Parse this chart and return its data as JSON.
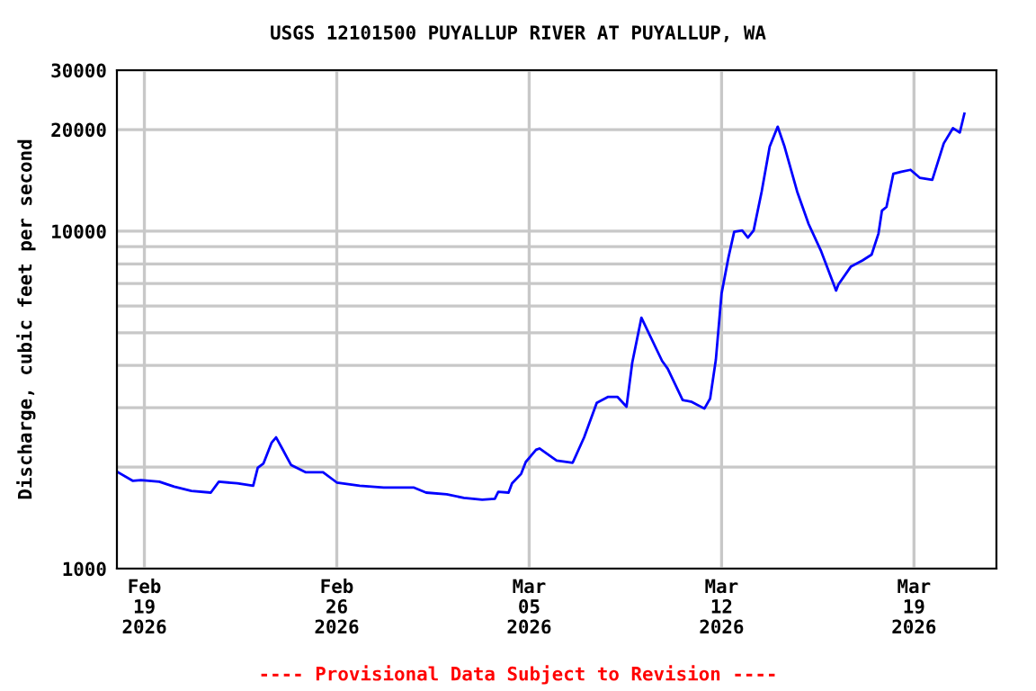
{
  "chart_data": {
    "type": "line",
    "title": "USGS 12101500 PUYALLUP RIVER AT PUYALLUP, WA",
    "ylabel": "Discharge, cubic feet per second",
    "annotations": [
      "---- Provisional Data Subject to Revision ----"
    ],
    "log": "y",
    "grid": true,
    "marker": "none",
    "line_style": "solid",
    "xlim": [
      "2026-02-18",
      "2026-03-22"
    ],
    "xticks": [
      {
        "value": "2026-02-19",
        "label": "Feb\n19\n2026"
      },
      {
        "value": "2026-02-26",
        "label": "Feb\n26\n2026"
      },
      {
        "value": "2026-03-05",
        "label": "Mar\n05\n2026"
      },
      {
        "value": "2026-03-12",
        "label": "Mar\n12\n2026"
      },
      {
        "value": "2026-03-19",
        "label": "Mar\n19\n2026"
      }
    ],
    "ylim": [
      1000,
      30000
    ],
    "yticks": [
      1000,
      {
        "value": 2000,
        "label": null
      },
      {
        "value": 3000,
        "label": null
      },
      {
        "value": 4000,
        "label": null
      },
      {
        "value": 5000,
        "label": null
      },
      {
        "value": 6000,
        "label": null
      },
      {
        "value": 7000,
        "label": null
      },
      {
        "value": 8000,
        "label": null
      },
      {
        "value": 9000,
        "label": null
      },
      10000,
      20000,
      30000
    ],
    "series": [
      {
        "color": "#0000ff",
        "x": [
          "2026-02-18T01:00",
          "2026-02-18T14:00",
          "2026-02-18T21:00",
          "2026-02-19T13:00",
          "2026-02-20T02:00",
          "2026-02-20T17:00",
          "2026-02-21T10:00",
          "2026-02-21T17:00",
          "2026-02-22T09:00",
          "2026-02-22T23:00",
          "2026-02-23T03:00",
          "2026-02-23T08:00",
          "2026-02-23T15:00",
          "2026-02-23T19:00",
          "2026-02-24T00:00",
          "2026-02-24T08:00",
          "2026-02-24T21:00",
          "2026-02-25T12:00",
          "2026-02-26T00:00",
          "2026-02-26T20:00",
          "2026-02-27T17:00",
          "2026-02-28T19:00",
          "2026-03-01T06:00",
          "2026-03-02T00:00",
          "2026-03-02T15:00",
          "2026-03-03T07:00",
          "2026-03-03T18:00",
          "2026-03-03T21:00",
          "2026-03-04T06:00",
          "2026-03-04T09:00",
          "2026-03-04T17:00",
          "2026-03-04T21:00",
          "2026-03-05T06:00",
          "2026-03-05T09:00",
          "2026-03-06T00:00",
          "2026-03-06T14:00",
          "2026-03-07T00:00",
          "2026-03-07T11:00",
          "2026-03-07T21:00",
          "2026-03-08T05:00",
          "2026-03-08T13:00",
          "2026-03-08T18:00",
          "2026-03-09T02:00",
          "2026-03-09T20:00",
          "2026-03-10T01:00",
          "2026-03-10T14:00",
          "2026-03-10T22:00",
          "2026-03-11T09:00",
          "2026-03-11T14:00",
          "2026-03-11T19:00",
          "2026-03-12T00:00",
          "2026-03-12T06:00",
          "2026-03-12T11:00",
          "2026-03-12T18:00",
          "2026-03-12T23:00",
          "2026-03-13T04:00",
          "2026-03-13T11:00",
          "2026-03-13T18:00",
          "2026-03-14T01:00",
          "2026-03-14T07:00",
          "2026-03-14T18:00",
          "2026-03-15T04:00",
          "2026-03-15T15:00",
          "2026-03-16T04:00",
          "2026-03-16T06:00",
          "2026-03-16T17:00",
          "2026-03-17T03:00",
          "2026-03-17T11:00",
          "2026-03-17T17:00",
          "2026-03-17T20:00",
          "2026-03-18T00:00",
          "2026-03-18T06:00",
          "2026-03-18T13:00",
          "2026-03-18T21:00",
          "2026-03-19T05:00",
          "2026-03-19T16:00",
          "2026-03-20T02:00",
          "2026-03-20T10:00",
          "2026-03-20T16:00",
          "2026-03-20T20:00"
        ],
        "values": [
          1930,
          1820,
          1830,
          1810,
          1750,
          1700,
          1680,
          1810,
          1790,
          1760,
          1990,
          2050,
          2360,
          2450,
          2280,
          2030,
          1930,
          1930,
          1800,
          1760,
          1740,
          1740,
          1680,
          1660,
          1620,
          1600,
          1610,
          1690,
          1680,
          1790,
          1910,
          2070,
          2250,
          2270,
          2090,
          2060,
          2450,
          3100,
          3230,
          3230,
          3020,
          4080,
          5540,
          4130,
          3910,
          3160,
          3120,
          2980,
          3190,
          4160,
          6540,
          8360,
          9960,
          10050,
          9570,
          10050,
          13100,
          17800,
          20400,
          17800,
          13100,
          10500,
          8710,
          6670,
          6950,
          7860,
          8190,
          8520,
          9840,
          11500,
          11800,
          14800,
          15000,
          15200,
          14400,
          14200,
          18200,
          20200,
          19600,
          22300
        ]
      }
    ]
  }
}
